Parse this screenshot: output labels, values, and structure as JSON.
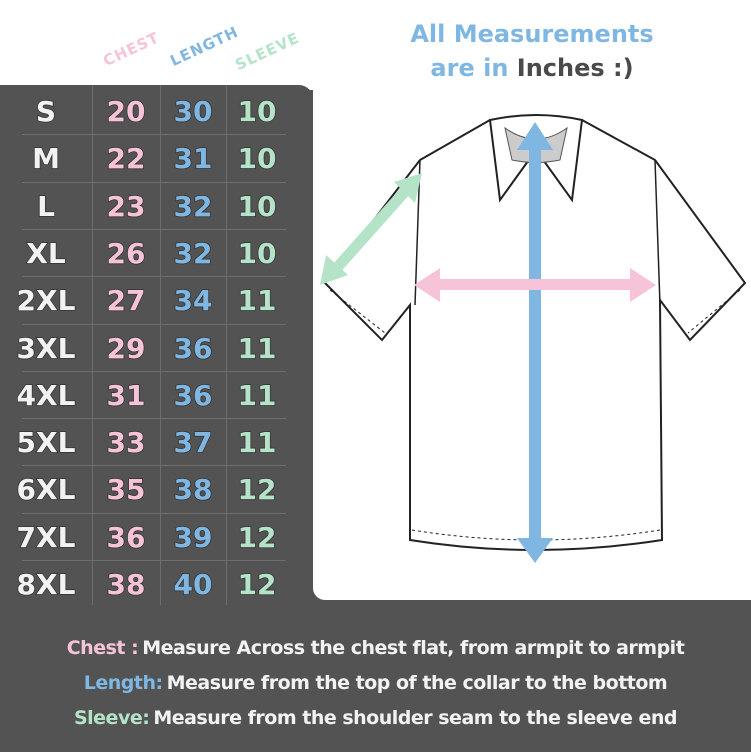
{
  "header": {
    "line1": "All Measurements",
    "line2_prefix": "are in",
    "line2_unit": "Inches :)"
  },
  "columns": {
    "chest": "CHEST",
    "length": "LENGTH",
    "sleeve": "SLEEVE"
  },
  "rows": [
    {
      "size": "S",
      "chest": "20",
      "length": "30",
      "sleeve": "10"
    },
    {
      "size": "M",
      "chest": "22",
      "length": "31",
      "sleeve": "10"
    },
    {
      "size": "L",
      "chest": "23",
      "length": "32",
      "sleeve": "10"
    },
    {
      "size": "XL",
      "chest": "26",
      "length": "32",
      "sleeve": "10"
    },
    {
      "size": "2XL",
      "chest": "27",
      "length": "34",
      "sleeve": "11"
    },
    {
      "size": "3XL",
      "chest": "29",
      "length": "36",
      "sleeve": "11"
    },
    {
      "size": "4XL",
      "chest": "31",
      "length": "36",
      "sleeve": "11"
    },
    {
      "size": "5XL",
      "chest": "33",
      "length": "37",
      "sleeve": "11"
    },
    {
      "size": "6XL",
      "chest": "35",
      "length": "38",
      "sleeve": "12"
    },
    {
      "size": "7XL",
      "chest": "36",
      "length": "39",
      "sleeve": "12"
    },
    {
      "size": "8XL",
      "chest": "38",
      "length": "40",
      "sleeve": "12"
    }
  ],
  "notes": {
    "chest": {
      "label": "Chest :",
      "text": "Measure Across the chest flat, from armpit to armpit"
    },
    "length": {
      "label": "Length:",
      "text": "Measure from the top of the collar to the bottom"
    },
    "sleeve": {
      "label": "Sleeve:",
      "text": "Measure from the shoulder seam to the sleeve end"
    }
  },
  "colors": {
    "chest": "#f6c3d8",
    "length": "#7fb7e2",
    "sleeve": "#b5e3c8",
    "panel": "#525352"
  }
}
